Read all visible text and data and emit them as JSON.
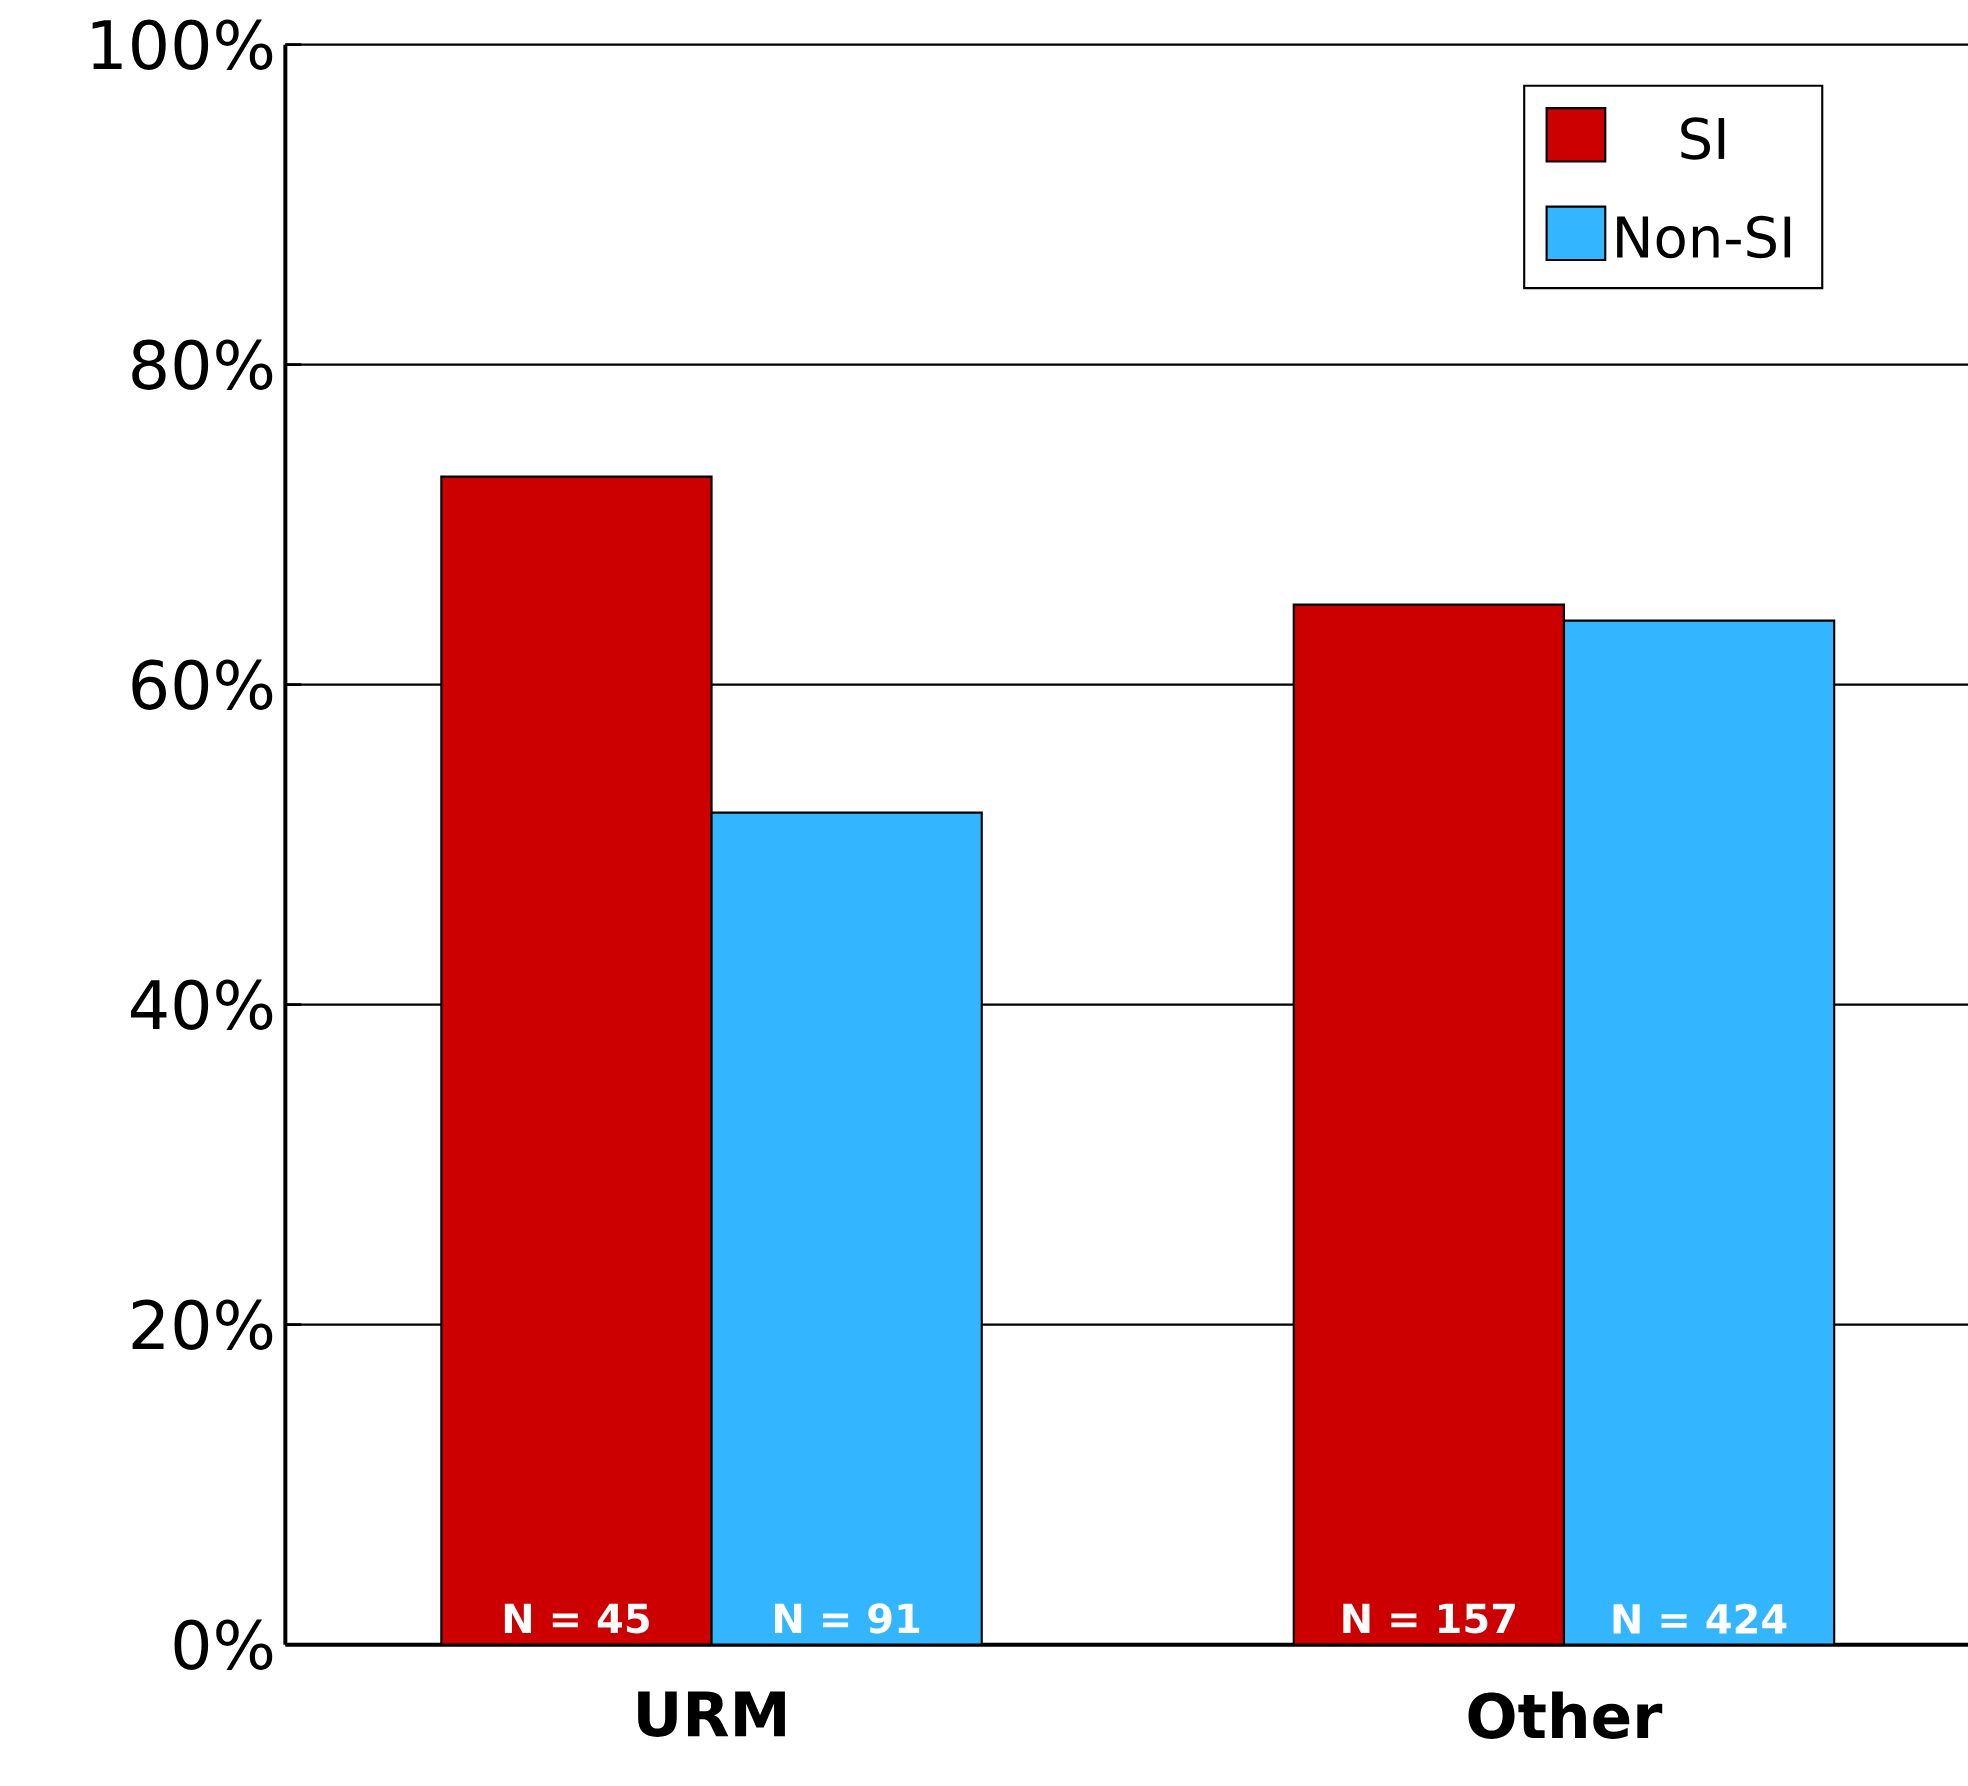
{
  "chart_data": {
    "type": "bar",
    "categories": [
      "URM",
      "Other"
    ],
    "series": [
      {
        "name": "SI",
        "color": "#cc0000",
        "values": [
          73,
          65
        ]
      },
      {
        "name": "Non-SI",
        "color": "#33b5ff",
        "values": [
          52,
          64
        ]
      }
    ],
    "ylim": [
      0,
      100
    ],
    "yticks": [
      {
        "value": 0,
        "label": "0%"
      },
      {
        "value": 20,
        "label": "20%"
      },
      {
        "value": 40,
        "label": "40%"
      },
      {
        "value": 60,
        "label": "60%"
      },
      {
        "value": 80,
        "label": "80%"
      },
      {
        "value": 100,
        "label": "100%"
      }
    ],
    "grid": "y",
    "legend": "top right",
    "annotations": [
      "N = 45",
      "N = 91",
      "N = 157",
      "N = 424"
    ]
  }
}
